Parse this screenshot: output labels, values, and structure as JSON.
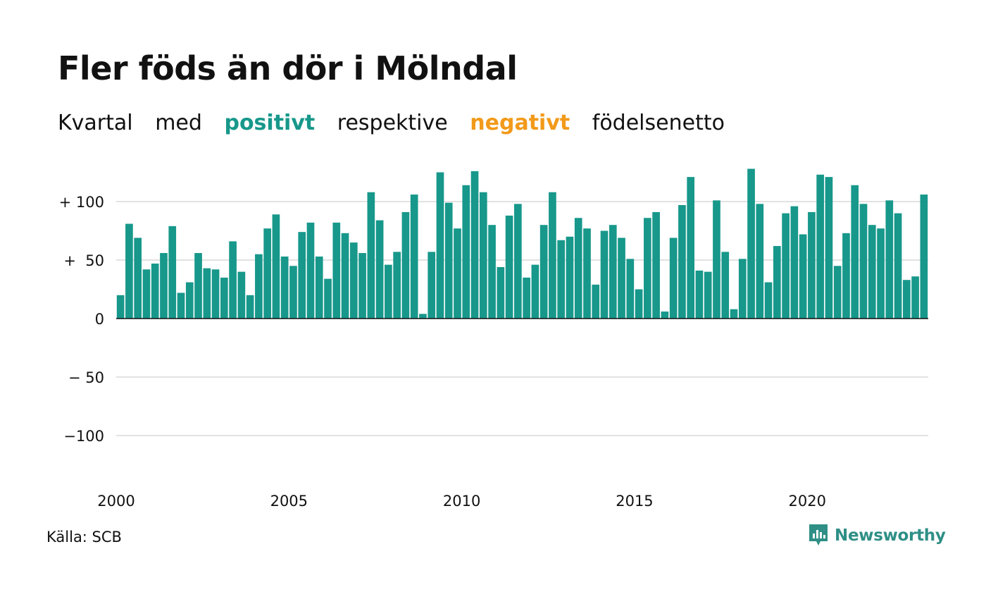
{
  "header": {
    "title": "Fler föds än dör i Mölndal",
    "subtitle_parts": [
      "Kvartal",
      "med",
      "positivt",
      "respektive",
      "negativt",
      "födelsenetto"
    ]
  },
  "colors": {
    "positive": "#17988b",
    "negative": "#f29a1a",
    "grid": "#e2e2e2",
    "axis": "#111111",
    "brand": "#2f8f86"
  },
  "footer": {
    "source": "Källa: SCB",
    "brand": "Newsworthy"
  },
  "icons": {
    "brand_logo": "bar-chart-speech-bubble-icon"
  },
  "chart_data": {
    "type": "bar",
    "x_start": "2000-Q1",
    "xtick_labels": [
      "2000",
      "2005",
      "2010",
      "2015",
      "2020"
    ],
    "ytick_labels": [
      "+ 100",
      "+  50",
      "0",
      "− 50",
      "−100"
    ],
    "ytick_values": [
      100,
      50,
      0,
      -50,
      -100
    ],
    "ylim": [
      -130,
      130
    ],
    "grid": true,
    "values": [
      20,
      81,
      69,
      42,
      47,
      56,
      79,
      22,
      31,
      56,
      43,
      42,
      35,
      66,
      40,
      20,
      55,
      77,
      89,
      53,
      45,
      74,
      82,
      53,
      34,
      82,
      73,
      65,
      56,
      108,
      84,
      46,
      57,
      91,
      106,
      4,
      57,
      125,
      99,
      77,
      114,
      126,
      108,
      80,
      44,
      88,
      98,
      35,
      46,
      80,
      108,
      67,
      70,
      86,
      77,
      29,
      75,
      80,
      69,
      51,
      25,
      86,
      91,
      6,
      69,
      97,
      121,
      41,
      40,
      101,
      57,
      8,
      51,
      128,
      98,
      31,
      62,
      90,
      96,
      72,
      91,
      123,
      121,
      45,
      73,
      114,
      98,
      80,
      77,
      101,
      90,
      33,
      36,
      106
    ]
  }
}
